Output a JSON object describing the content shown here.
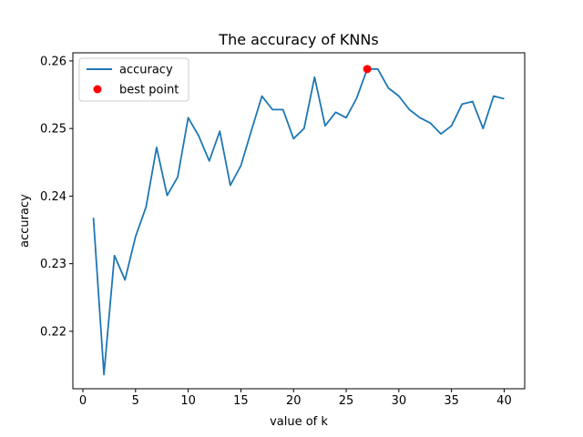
{
  "chart_data": {
    "type": "line",
    "title": "The accuracy of KNNs",
    "xlabel": "value of k",
    "ylabel": "accuracy",
    "xlim": [
      -0.95,
      41.95
    ],
    "ylim": [
      0.2115,
      0.2612
    ],
    "xticks": [
      0,
      5,
      10,
      15,
      20,
      25,
      30,
      35,
      40
    ],
    "yticks": [
      0.22,
      0.23,
      0.24,
      0.25,
      0.26
    ],
    "xtick_labels": [
      "0",
      "5",
      "10",
      "15",
      "20",
      "25",
      "30",
      "35",
      "40"
    ],
    "ytick_labels": [
      "0.22",
      "0.23",
      "0.24",
      "0.25",
      "0.26"
    ],
    "grid": false,
    "legend_position": "upper left",
    "series": [
      {
        "name": "accuracy",
        "color": "#1f77b4",
        "x": [
          1,
          2,
          3,
          4,
          5,
          6,
          7,
          8,
          9,
          10,
          11,
          12,
          13,
          14,
          15,
          16,
          17,
          18,
          19,
          20,
          21,
          22,
          23,
          24,
          25,
          26,
          27,
          28,
          29,
          30,
          31,
          32,
          33,
          34,
          35,
          36,
          37,
          38,
          39,
          40
        ],
        "y": [
          0.2368,
          0.2136,
          0.2312,
          0.2276,
          0.234,
          0.2384,
          0.2472,
          0.2401,
          0.2428,
          0.2516,
          0.2489,
          0.2452,
          0.2496,
          0.2416,
          0.2445,
          0.2497,
          0.2548,
          0.2528,
          0.2528,
          0.2485,
          0.25,
          0.2576,
          0.2504,
          0.2524,
          0.2516,
          0.2545,
          0.2588,
          0.2588,
          0.256,
          0.2548,
          0.2528,
          0.2516,
          0.2508,
          0.2492,
          0.2504,
          0.2536,
          0.254,
          0.25,
          0.2548,
          0.2544
        ]
      }
    ],
    "highlight": {
      "name": "best point",
      "color": "#ff0000",
      "x": 27,
      "y": 0.2588
    }
  }
}
